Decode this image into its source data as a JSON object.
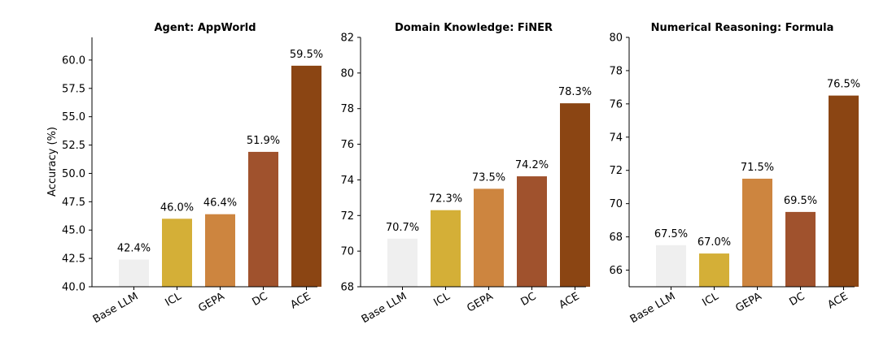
{
  "chart_data": [
    {
      "type": "bar",
      "title": "Agent: AppWorld",
      "ylabel": "Accuracy (%)",
      "categories": [
        "Base LLM",
        "ICL",
        "GEPA",
        "DC",
        "ACE"
      ],
      "values": [
        42.4,
        46.0,
        46.4,
        51.9,
        59.5
      ],
      "value_labels": [
        "42.4%",
        "46.0%",
        "46.4%",
        "51.9%",
        "59.5%"
      ],
      "ylim": [
        40.0,
        62.0
      ],
      "yticks": [
        40.0,
        42.5,
        45.0,
        47.5,
        50.0,
        52.5,
        55.0,
        57.5,
        60.0
      ],
      "ytick_labels": [
        "40.0",
        "42.5",
        "45.0",
        "47.5",
        "50.0",
        "52.5",
        "55.0",
        "57.5",
        "60.0"
      ],
      "grid": false
    },
    {
      "type": "bar",
      "title": "Domain Knowledge: FiNER",
      "ylabel": "",
      "categories": [
        "Base LLM",
        "ICL",
        "GEPA",
        "DC",
        "ACE"
      ],
      "values": [
        70.7,
        72.3,
        73.5,
        74.2,
        78.3
      ],
      "value_labels": [
        "70.7%",
        "72.3%",
        "73.5%",
        "74.2%",
        "78.3%"
      ],
      "ylim": [
        68,
        82
      ],
      "yticks": [
        68,
        70,
        72,
        74,
        76,
        78,
        80,
        82
      ],
      "ytick_labels": [
        "68",
        "70",
        "72",
        "74",
        "76",
        "78",
        "80",
        "82"
      ],
      "grid": false
    },
    {
      "type": "bar",
      "title": "Numerical Reasoning: Formula",
      "ylabel": "",
      "categories": [
        "Base LLM",
        "ICL",
        "GEPA",
        "DC",
        "ACE"
      ],
      "values": [
        67.5,
        67.0,
        71.5,
        69.5,
        76.5
      ],
      "value_labels": [
        "67.5%",
        "67.0%",
        "71.5%",
        "69.5%",
        "76.5%"
      ],
      "ylim": [
        65,
        80
      ],
      "yticks": [
        66,
        68,
        70,
        72,
        74,
        76,
        78,
        80
      ],
      "ytick_labels": [
        "66",
        "68",
        "70",
        "72",
        "74",
        "76",
        "78",
        "80"
      ],
      "grid": false
    }
  ],
  "colors": {
    "bars": [
      "#efefef",
      "#d4af37",
      "#cd853f",
      "#a0522d",
      "#8b4513"
    ],
    "axis": "#000000"
  }
}
